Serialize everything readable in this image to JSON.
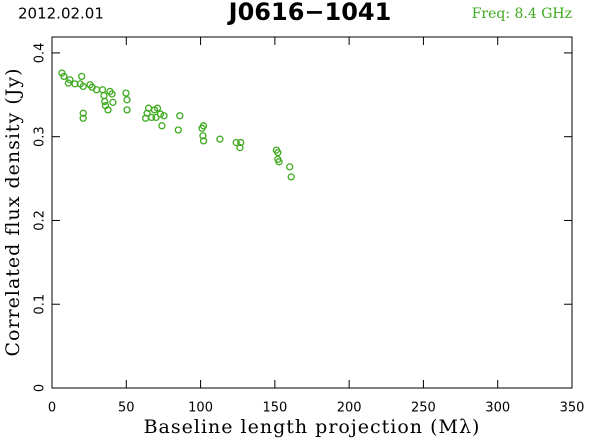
{
  "chart_data": {
    "type": "scatter",
    "title": "J0616−1041",
    "date": "2012.02.01",
    "subtitle": "Freq: 8.4 GHz",
    "xlabel": "Baseline length projection (Mλ)",
    "ylabel": "Correlated flux density (Jy)",
    "xlim": [
      0,
      350
    ],
    "ylim": [
      0,
      0.419
    ],
    "xticks": [
      0,
      50,
      100,
      150,
      200,
      250,
      300,
      350
    ],
    "yticks": [
      0,
      0.1,
      0.2,
      0.3,
      0.4
    ],
    "series": [
      {
        "color": "#3faa1f",
        "x": [
          6.7,
          8,
          11,
          12,
          15.5,
          19,
          20,
          21,
          21,
          21,
          25.6,
          27,
          30,
          34,
          35,
          35.5,
          36,
          37.7,
          39,
          40.4,
          41,
          49.8,
          50.5,
          50.5,
          63,
          64,
          65,
          67,
          69,
          70,
          71,
          73,
          74,
          75.4,
          85,
          86,
          101,
          101.6,
          102,
          102,
          113,
          124,
          126.5,
          127,
          151,
          152,
          152,
          152.8,
          160,
          161
        ],
        "y": [
          0.376,
          0.372,
          0.364,
          0.368,
          0.363,
          0.363,
          0.372,
          0.36,
          0.328,
          0.322,
          0.362,
          0.359,
          0.356,
          0.356,
          0.349,
          0.342,
          0.337,
          0.332,
          0.354,
          0.351,
          0.341,
          0.352,
          0.344,
          0.332,
          0.322,
          0.328,
          0.334,
          0.323,
          0.332,
          0.323,
          0.334,
          0.327,
          0.313,
          0.325,
          0.308,
          0.325,
          0.31,
          0.301,
          0.295,
          0.313,
          0.297,
          0.293,
          0.287,
          0.293,
          0.284,
          0.281,
          0.273,
          0.27,
          0.264,
          0.252
        ]
      }
    ]
  }
}
